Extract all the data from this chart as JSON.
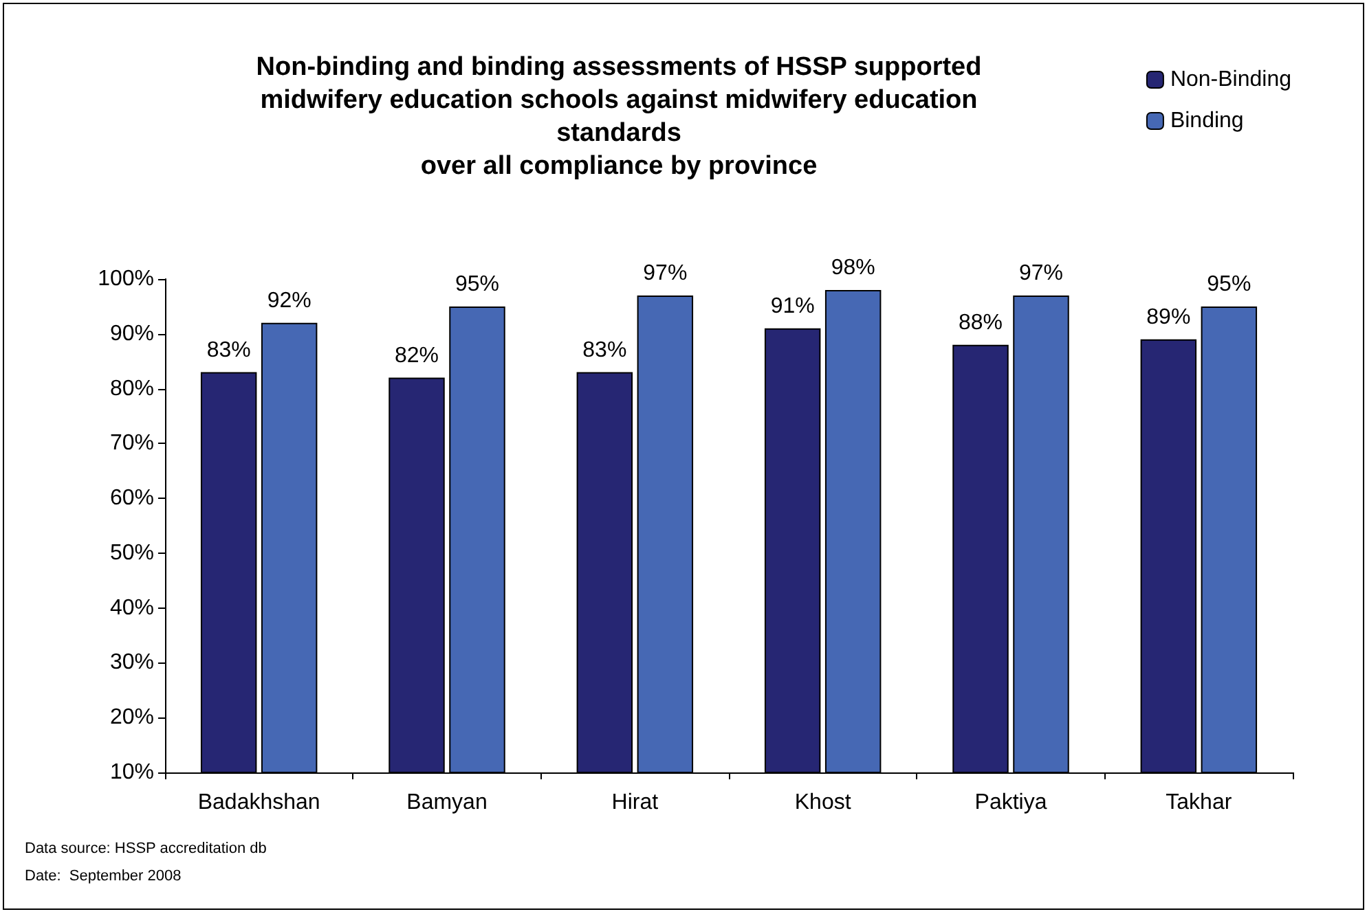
{
  "chart_data": {
    "type": "bar",
    "title": "Non-binding and binding assessments of HSSP supported\nmidwifery education schools against midwifery education\nstandards\nover all compliance by province",
    "categories": [
      "Badakhshan",
      "Bamyan",
      "Hirat",
      "Khost",
      "Paktiya",
      "Takhar"
    ],
    "series": [
      {
        "name": "Non-Binding",
        "color": "#262673",
        "values": [
          83,
          82,
          83,
          91,
          88,
          89
        ],
        "value_labels": [
          "83%",
          "82%",
          "83%",
          "91%",
          "88%",
          "89%"
        ]
      },
      {
        "name": "Binding",
        "color": "#4668b4",
        "values": [
          92,
          95,
          97,
          98,
          97,
          95
        ],
        "value_labels": [
          "92%",
          "95%",
          "97%",
          "98%",
          "97%",
          "95%"
        ]
      }
    ],
    "ylim": [
      10,
      100
    ],
    "yticks": [
      {
        "value": 10,
        "label": "10%"
      },
      {
        "value": 20,
        "label": "20%"
      },
      {
        "value": 30,
        "label": "30%"
      },
      {
        "value": 40,
        "label": "40%"
      },
      {
        "value": 50,
        "label": "50%"
      },
      {
        "value": 60,
        "label": "60%"
      },
      {
        "value": 70,
        "label": "70%"
      },
      {
        "value": 80,
        "label": "80%"
      },
      {
        "value": 90,
        "label": "90%"
      },
      {
        "value": 100,
        "label": "100%"
      }
    ],
    "grid": false,
    "legend": "top right",
    "annotations": [
      "Data source: HSSP accreditation db",
      "Date:  September 2008"
    ]
  }
}
